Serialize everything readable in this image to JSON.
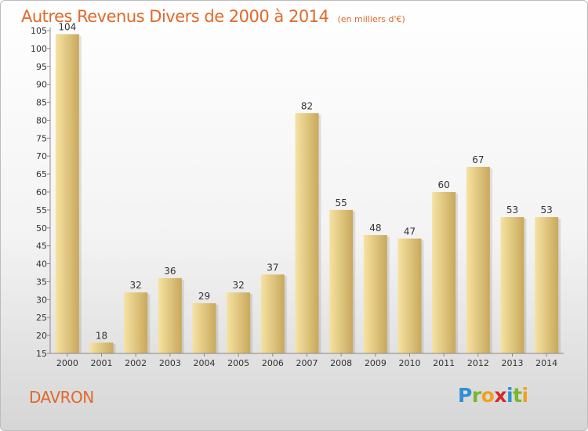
{
  "header": {
    "title": "Autres Revenus Divers de 2000 à 2014",
    "subtitle": "(en milliers d'€)"
  },
  "footer": {
    "place": "DAVRON",
    "logo": {
      "letters": [
        "P",
        "r",
        "o",
        "x",
        "i",
        "t",
        "i"
      ],
      "colors": [
        "#2f8fd6",
        "#78b82a",
        "#f0a020",
        "#d42a2a",
        "#2f8fd6",
        "#78b82a",
        "#f0a020"
      ]
    }
  },
  "chart_data": {
    "type": "bar",
    "categories": [
      "2000",
      "2001",
      "2002",
      "2003",
      "2004",
      "2005",
      "2006",
      "2007",
      "2008",
      "2009",
      "2010",
      "2011",
      "2012",
      "2013",
      "2014"
    ],
    "values": [
      104,
      18,
      32,
      36,
      29,
      32,
      37,
      82,
      55,
      48,
      47,
      60,
      67,
      53,
      53
    ],
    "ylim": [
      15,
      105
    ],
    "yticks": [
      15,
      20,
      25,
      30,
      35,
      40,
      45,
      50,
      55,
      60,
      65,
      70,
      75,
      80,
      85,
      90,
      95,
      100,
      105
    ],
    "grid": false,
    "colors": {
      "bar_light": "#f6e3a2",
      "bar_dark": "#c8a85c",
      "axis": "#888888"
    }
  }
}
